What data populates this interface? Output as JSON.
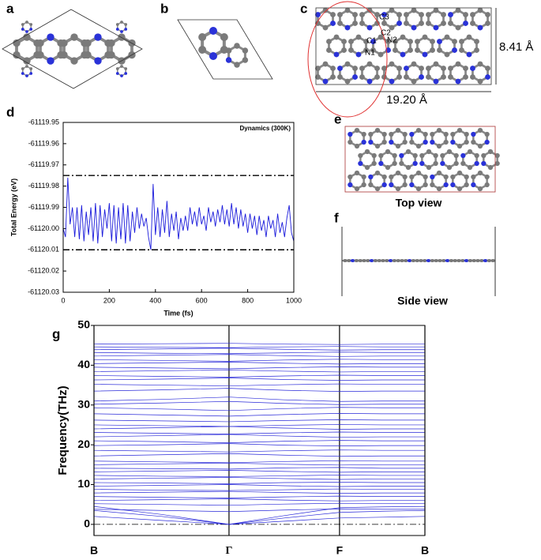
{
  "panel_labels": [
    "a",
    "b",
    "c",
    "d",
    "e",
    "f",
    "g"
  ],
  "structure_c": {
    "atom_labels": [
      "C3",
      "C2",
      "C1",
      "N2",
      "N1"
    ],
    "height_label": "8.41 Å",
    "width_label": "19.20 Å"
  },
  "captions": {
    "top_view": "Top view",
    "side_view": "Side view"
  },
  "chart_data": [
    {
      "type": "line",
      "annotation": "Dynamics (300K)",
      "xlabel": "Time (fs)",
      "ylabel": "Total Energy (eV)",
      "xlim": [
        0,
        1000
      ],
      "xticks": [
        0,
        200,
        400,
        600,
        800,
        1000
      ],
      "ylim": [
        -61120.03,
        -61119.95
      ],
      "yticks": [
        -61119.95,
        -61119.96,
        -61119.97,
        -61119.98,
        -61119.99,
        {
          "value": -61120.0,
          "label": "-61120.00"
        },
        -61120.01,
        -61120.02,
        -61120.03
      ],
      "reference_lines": [
        -61119.975,
        -61120.01
      ],
      "x": [
        0,
        10,
        20,
        30,
        40,
        50,
        60,
        70,
        80,
        90,
        100,
        110,
        120,
        130,
        140,
        150,
        160,
        170,
        180,
        190,
        200,
        210,
        220,
        230,
        240,
        250,
        260,
        270,
        280,
        290,
        300,
        310,
        320,
        330,
        340,
        350,
        360,
        370,
        380,
        390,
        400,
        410,
        420,
        430,
        440,
        450,
        460,
        470,
        480,
        490,
        500,
        510,
        520,
        530,
        540,
        550,
        560,
        570,
        580,
        590,
        600,
        610,
        620,
        630,
        640,
        650,
        660,
        670,
        680,
        690,
        700,
        710,
        720,
        730,
        740,
        750,
        760,
        770,
        780,
        790,
        800,
        810,
        820,
        830,
        840,
        850,
        860,
        870,
        880,
        890,
        900,
        910,
        920,
        930,
        940,
        950,
        960,
        970,
        980,
        990,
        1000
      ],
      "series": [
        {
          "color": "#1a1adb",
          "values": [
            -61120.0,
            -61120.004,
            -61119.976,
            -61119.998,
            -61119.99,
            -61120.004,
            -61119.99,
            -61120.005,
            -61119.989,
            -61120.006,
            -61119.992,
            -61120.003,
            -61119.99,
            -61120.006,
            -61119.988,
            -61120.007,
            -61119.989,
            -61120.004,
            -61119.991,
            -61120.0,
            -61119.988,
            -61120.006,
            -61119.989,
            -61120.007,
            -61119.99,
            -61120.005,
            -61119.988,
            -61120.007,
            -61119.989,
            -61120.006,
            -61119.992,
            -61120.002,
            -61119.99,
            -61120.0,
            -61119.993,
            -61119.999,
            -61119.995,
            -61120.004,
            -61120.01,
            -61119.979,
            -61120.003,
            -61119.99,
            -61120.004,
            -61119.991,
            -61120.002,
            -61119.987,
            -61120.004,
            -61119.993,
            -61120.001,
            -61119.992,
            -61120.005,
            -61119.995,
            -61120.001,
            -61119.994,
            -61120.001,
            -61119.99,
            -61119.998,
            -61119.992,
            -61119.999,
            -61119.99,
            -61119.998,
            -61119.994,
            -61120.001,
            -61119.99,
            -61119.997,
            -61119.992,
            -61119.999,
            -61119.991,
            -61119.997,
            -61119.989,
            -61119.998,
            -61119.991,
            -61119.999,
            -61119.988,
            -61119.998,
            -61119.99,
            -61120.0,
            -61119.991,
            -61119.999,
            -61119.993,
            -61120.002,
            -61119.993,
            -61120.0,
            -61119.994,
            -61120.003,
            -61119.994,
            -61120.001,
            -61119.996,
            -61120.004,
            -61119.994,
            -61120.0,
            -61119.996,
            -61120.004,
            -61119.993,
            -61120.002,
            -61119.997,
            -61120.004,
            -61119.995,
            -61119.989,
            -61120.002,
            -61120.006
          ]
        }
      ]
    },
    {
      "type": "line",
      "ylabel": "Frequency(THz)",
      "color": "#2b2bd9",
      "xlim": [
        0,
        1
      ],
      "xticks": [
        {
          "value": 0,
          "label": "B"
        },
        {
          "value": 0.408,
          "label": "Γ"
        },
        {
          "value": 0.742,
          "label": "F"
        },
        {
          "value": 1,
          "label": "B"
        }
      ],
      "ylim": [
        -2.8,
        50
      ],
      "yticks": [
        0,
        10,
        20,
        30,
        40,
        50
      ],
      "reference_lines": [
        0
      ],
      "x": [
        0,
        0.204,
        0.408,
        0.575,
        0.742,
        0.871,
        1
      ],
      "series": [
        {
          "values": [
            4.5,
            2.5,
            0,
            2.2,
            4.2,
            4.4,
            4.5
          ]
        },
        {
          "values": [
            3.5,
            2.0,
            0,
            1.6,
            3.0,
            3.3,
            3.5
          ]
        },
        {
          "values": [
            2.0,
            1.0,
            0,
            0.8,
            1.6,
            1.8,
            2.0
          ]
        },
        {
          "values": [
            3.8,
            3.5,
            3.2,
            3.6,
            3.9,
            3.8,
            3.8
          ]
        },
        {
          "values": [
            5.2,
            5.0,
            4.8,
            5.1,
            5.3,
            5.2,
            5.2
          ]
        },
        {
          "values": [
            6.0,
            6.2,
            6.4,
            6.1,
            5.9,
            6.0,
            6.0
          ]
        },
        {
          "values": [
            7.0,
            6.8,
            6.6,
            6.9,
            7.1,
            7.0,
            7.0
          ]
        },
        {
          "values": [
            7.9,
            8.1,
            8.3,
            8.0,
            7.8,
            7.9,
            7.9
          ]
        },
        {
          "values": [
            8.8,
            8.6,
            8.5,
            8.7,
            8.9,
            8.8,
            8.8
          ]
        },
        {
          "values": [
            9.6,
            9.8,
            10.0,
            9.7,
            9.5,
            9.6,
            9.6
          ]
        },
        {
          "values": [
            10.5,
            10.4,
            10.2,
            10.5,
            10.6,
            10.5,
            10.5
          ]
        },
        {
          "values": [
            11.4,
            11.6,
            11.8,
            11.5,
            11.3,
            11.4,
            11.4
          ]
        },
        {
          "values": [
            12.3,
            12.1,
            12.0,
            12.2,
            12.4,
            12.3,
            12.3
          ]
        },
        {
          "values": [
            13.2,
            13.4,
            13.6,
            13.3,
            13.1,
            13.2,
            13.2
          ]
        },
        {
          "values": [
            14.1,
            14.0,
            13.9,
            14.2,
            14.3,
            14.1,
            14.1
          ]
        },
        {
          "values": [
            15.0,
            15.2,
            15.4,
            15.1,
            14.9,
            15.0,
            15.0
          ]
        },
        {
          "values": [
            15.9,
            15.7,
            15.5,
            15.8,
            16.0,
            15.9,
            15.9
          ]
        },
        {
          "values": [
            17.2,
            17.5,
            17.8,
            17.4,
            17.1,
            17.2,
            17.2
          ]
        },
        {
          "values": [
            18.6,
            18.4,
            18.2,
            18.5,
            18.7,
            18.6,
            18.6
          ]
        },
        {
          "values": [
            19.8,
            20.0,
            20.3,
            19.9,
            19.7,
            19.8,
            19.8
          ]
        },
        {
          "values": [
            21.0,
            20.8,
            20.5,
            20.9,
            21.1,
            21.0,
            21.0
          ]
        },
        {
          "values": [
            22.0,
            22.3,
            22.6,
            22.2,
            21.9,
            22.0,
            22.0
          ]
        },
        {
          "values": [
            23.1,
            22.9,
            22.7,
            23.0,
            23.2,
            23.1,
            23.1
          ]
        },
        {
          "values": [
            24.0,
            24.3,
            24.6,
            24.2,
            23.9,
            24.0,
            24.0
          ]
        },
        {
          "values": [
            25.0,
            24.8,
            24.6,
            24.9,
            25.1,
            25.0,
            25.0
          ]
        },
        {
          "values": [
            26.2,
            26.0,
            25.8,
            26.1,
            26.3,
            26.2,
            26.2
          ]
        },
        {
          "values": [
            27.8,
            27.5,
            27.2,
            27.6,
            27.9,
            27.8,
            27.8
          ]
        },
        {
          "values": [
            29.3,
            29.0,
            28.6,
            29.1,
            29.4,
            29.3,
            29.3
          ]
        },
        {
          "values": [
            30.2,
            30.5,
            30.9,
            30.4,
            30.1,
            30.2,
            30.2
          ]
        },
        {
          "values": [
            31.0,
            31.4,
            32.0,
            31.3,
            30.9,
            31.0,
            31.0
          ]
        },
        {
          "values": [
            33.5,
            33.8,
            34.2,
            33.7,
            33.4,
            33.5,
            33.5
          ]
        },
        {
          "values": [
            35.2,
            35.0,
            34.8,
            35.1,
            35.3,
            35.2,
            35.2
          ]
        },
        {
          "values": [
            36.3,
            36.5,
            36.8,
            36.4,
            36.2,
            36.3,
            36.3
          ]
        },
        {
          "values": [
            37.4,
            37.2,
            37.0,
            37.3,
            37.5,
            37.4,
            37.4
          ]
        },
        {
          "values": [
            38.4,
            38.6,
            38.8,
            38.5,
            38.3,
            38.4,
            38.4
          ]
        },
        {
          "values": [
            39.5,
            39.3,
            39.1,
            39.4,
            39.6,
            39.5,
            39.5
          ]
        },
        {
          "values": [
            40.4,
            40.6,
            40.8,
            40.5,
            40.3,
            40.4,
            40.4
          ]
        },
        {
          "values": [
            41.4,
            41.2,
            41.0,
            41.3,
            41.5,
            41.4,
            41.4
          ]
        },
        {
          "values": [
            42.3,
            42.5,
            42.7,
            42.4,
            42.2,
            42.3,
            42.3
          ]
        },
        {
          "values": [
            43.2,
            43.0,
            42.9,
            43.1,
            43.3,
            43.2,
            43.2
          ]
        },
        {
          "values": [
            43.9,
            44.1,
            44.3,
            44.0,
            43.8,
            43.9,
            43.9
          ]
        },
        {
          "values": [
            44.6,
            44.5,
            44.4,
            44.6,
            44.7,
            44.6,
            44.6
          ]
        },
        {
          "values": [
            45.3,
            45.4,
            45.5,
            45.3,
            45.2,
            45.3,
            45.3
          ]
        }
      ]
    }
  ]
}
